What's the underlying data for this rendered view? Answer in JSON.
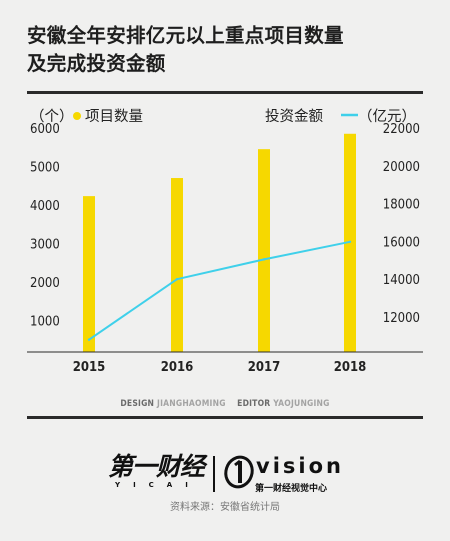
{
  "header": {
    "title_line1": "安徽全年安排亿元以上重点项目数量",
    "title_line2": "及完成投资金额"
  },
  "chart_data": {
    "type": "bar",
    "categories": [
      "2015",
      "2016",
      "2017",
      "2018"
    ],
    "series": [
      {
        "name": "项目数量",
        "kind": "bar",
        "axis": "left",
        "values": [
          4230,
          4700,
          5450,
          5850
        ]
      },
      {
        "name": "投资金额",
        "kind": "line",
        "axis": "right",
        "values": [
          10800,
          14000,
          15050,
          15980
        ]
      }
    ],
    "left_axis": {
      "label": "（个）",
      "ticks": [
        1000,
        2000,
        3000,
        4000,
        5000,
        6000
      ],
      "tick_labels": [
        "1000",
        "2000",
        "3000",
        "4000",
        "5000",
        "6000"
      ],
      "range": [
        180,
        6000
      ]
    },
    "right_axis": {
      "label": "（亿元）",
      "ticks": [
        12000,
        14000,
        16000,
        18000,
        20000,
        22000
      ],
      "tick_labels": [
        "12000",
        "14000",
        "16000",
        "18000",
        "20000",
        "22000"
      ],
      "range": [
        10150,
        22000
      ]
    },
    "legend": [
      {
        "label": "项目数量",
        "marker": "dot",
        "color": "#f6d800"
      },
      {
        "label": "投资金额",
        "marker": "line",
        "color": "#3fd0ea"
      }
    ],
    "colors": {
      "bar": "#f6d800",
      "line": "#3fd0ea",
      "axis": "#2a2a2a"
    },
    "grid": false
  },
  "credits": {
    "design_role": "DESIGN",
    "design_name": "JIANGHAOMING",
    "editor_role": "EDITOR",
    "editor_name": "YAOJUNGING"
  },
  "logos": {
    "yicai_main": "第一财经",
    "yicai_sub": "YICAI",
    "vision_main": "vision",
    "vision_sub": "第一财经视觉中心"
  },
  "source": "资料来源：安徽省统计局"
}
